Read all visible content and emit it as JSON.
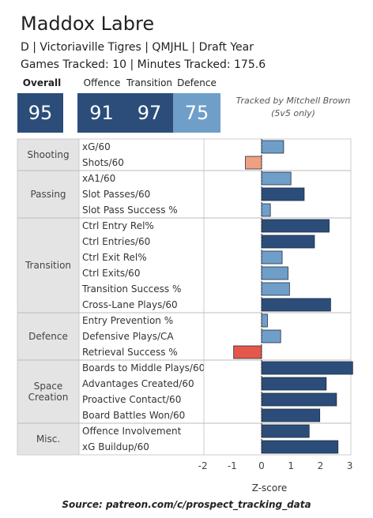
{
  "player": {
    "name": "Maddox Labre",
    "info": "D | Victoriaville Tigres | QMJHL | Draft Year",
    "tracked": "Games Tracked: 10 | Minutes Tracked: 175.6"
  },
  "scores": {
    "overall_label": "Overall",
    "overall": "95",
    "offence_label": "Offence",
    "offence": "91",
    "transition_label": "Transition",
    "transition": "97",
    "defence_label": "Defence",
    "defence": "75"
  },
  "credit": {
    "line1": "Tracked by Mitchell Brown",
    "line2": "(5v5 only)"
  },
  "source": "Source: patreon.com/c/prospect_tracking_data",
  "colors": {
    "positive": "#2c4d79",
    "positive_light": "#6f9ec9",
    "negative": "#e4574a",
    "negative_light": "#f0a080",
    "group_bg": "#e4e4e4"
  },
  "chart_data": {
    "type": "bar",
    "orientation": "horizontal",
    "xlabel": "Z-score",
    "xlim": [
      -2.6,
      3.2
    ],
    "xticks": [
      -2,
      -1,
      0,
      1,
      2,
      3
    ],
    "groups": [
      {
        "name": "Shooting",
        "metrics": [
          {
            "label": "xG/60",
            "value": 0.75
          },
          {
            "label": "Shots/60",
            "value": -0.55
          }
        ]
      },
      {
        "name": "Passing",
        "metrics": [
          {
            "label": "xA1/60",
            "value": 1.0
          },
          {
            "label": "Slot Passes/60",
            "value": 1.45
          },
          {
            "label": "Slot Pass Success %",
            "value": 0.3
          }
        ]
      },
      {
        "name": "Transition",
        "metrics": [
          {
            "label": "Ctrl Entry Rel%",
            "value": 2.3
          },
          {
            "label": "Ctrl Entries/60",
            "value": 1.8
          },
          {
            "label": "Ctrl Exit Rel%",
            "value": 0.7
          },
          {
            "label": "Ctrl Exits/60",
            "value": 0.9
          },
          {
            "label": "Transition Success %",
            "value": 0.95
          },
          {
            "label": "Cross-Lane Plays/60",
            "value": 2.35
          }
        ]
      },
      {
        "name": "Defence",
        "metrics": [
          {
            "label": "Entry Prevention %",
            "value": 0.2
          },
          {
            "label": "Defensive Plays/CA",
            "value": 0.65
          },
          {
            "label": "Retrieval Success %",
            "value": -0.95
          }
        ]
      },
      {
        "name": "Space Creation",
        "metrics": [
          {
            "label": "Boards to Middle Plays/60",
            "value": 3.1
          },
          {
            "label": "Advantages Created/60",
            "value": 2.2
          },
          {
            "label": "Proactive Contact/60",
            "value": 2.55
          },
          {
            "label": "Board Battles Won/60",
            "value": 1.98
          }
        ]
      },
      {
        "name": "Misc.",
        "metrics": [
          {
            "label": "Offence Involvement",
            "value": 1.62
          },
          {
            "label": "xG Buildup/60",
            "value": 2.6
          }
        ]
      }
    ]
  }
}
